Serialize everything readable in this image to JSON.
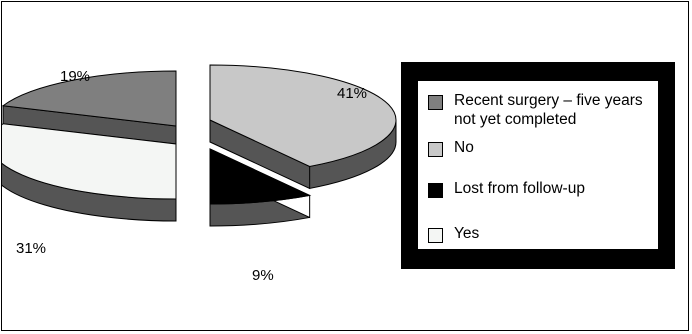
{
  "chart_data": {
    "type": "pie",
    "exploded_3d": true,
    "slices": [
      {
        "label": "Recent surgery – five years not yet completed",
        "value": 19,
        "value_label": "19%",
        "color": "#7f7f7f"
      },
      {
        "label": "No",
        "value": 41,
        "value_label": "41%",
        "color": "#c8c8c8"
      },
      {
        "label": "Lost from follow-up",
        "value": 9,
        "value_label": "9%",
        "color": "#000000"
      },
      {
        "label": "Yes",
        "value": 31,
        "value_label": "31%",
        "color": "#f4f6f4"
      }
    ],
    "legend_placement": "right",
    "legend_order": [
      0,
      1,
      2,
      3
    ],
    "side_color": "#555555"
  }
}
